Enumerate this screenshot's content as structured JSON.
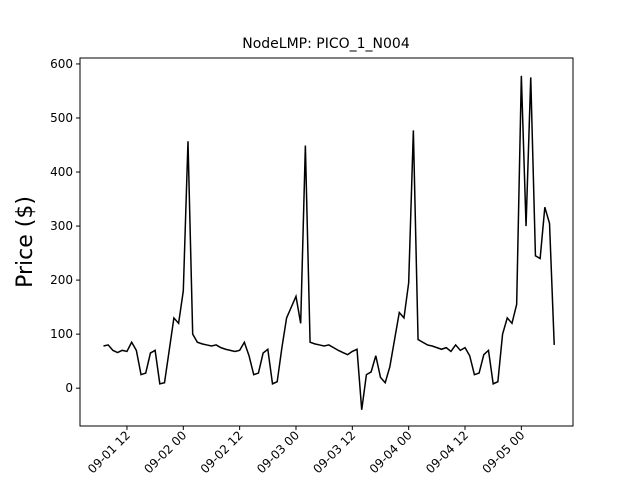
{
  "chart_data": {
    "type": "line",
    "title": "NodeLMP: PICO_1_N004",
    "y_label": "Price ($)",
    "x": [
      "09-01 07",
      "09-01 08",
      "09-01 09",
      "09-01 10",
      "09-01 11",
      "09-01 12",
      "09-01 13",
      "09-01 14",
      "09-01 15",
      "09-01 16",
      "09-01 17",
      "09-01 18",
      "09-01 19",
      "09-01 20",
      "09-01 21",
      "09-01 22",
      "09-01 23",
      "09-02 00",
      "09-02 01",
      "09-02 02",
      "09-02 03",
      "09-02 04",
      "09-02 05",
      "09-02 06",
      "09-02 07",
      "09-02 08",
      "09-02 09",
      "09-02 10",
      "09-02 11",
      "09-02 12",
      "09-02 13",
      "09-02 14",
      "09-02 15",
      "09-02 16",
      "09-02 17",
      "09-02 18",
      "09-02 19",
      "09-02 20",
      "09-02 21",
      "09-02 22",
      "09-02 23",
      "09-03 00",
      "09-03 01",
      "09-03 02",
      "09-03 03",
      "09-03 04",
      "09-03 05",
      "09-03 06",
      "09-03 07",
      "09-03 08",
      "09-03 09",
      "09-03 10",
      "09-03 11",
      "09-03 12",
      "09-03 13",
      "09-03 14",
      "09-03 15",
      "09-03 16",
      "09-03 17",
      "09-03 18",
      "09-03 19",
      "09-03 20",
      "09-03 21",
      "09-03 22",
      "09-03 23",
      "09-04 00",
      "09-04 01",
      "09-04 02",
      "09-04 03",
      "09-04 04",
      "09-04 05",
      "09-04 06",
      "09-04 07",
      "09-04 08",
      "09-04 09",
      "09-04 10",
      "09-04 11",
      "09-04 12",
      "09-04 13",
      "09-04 14",
      "09-04 15",
      "09-04 16",
      "09-04 17",
      "09-04 18",
      "09-04 19",
      "09-04 20",
      "09-04 21",
      "09-04 22",
      "09-04 23",
      "09-05 00",
      "09-05 01",
      "09-05 02",
      "09-05 03",
      "09-05 04",
      "09-05 05",
      "09-05 06",
      "09-05 07"
    ],
    "series": [
      {
        "name": "PICO_1_N004",
        "color": "#000000",
        "values": [
          78,
          80,
          70,
          66,
          70,
          68,
          85,
          70,
          25,
          28,
          65,
          70,
          8,
          10,
          70,
          130,
          120,
          180,
          457,
          100,
          85,
          82,
          80,
          78,
          80,
          75,
          72,
          70,
          68,
          70,
          85,
          60,
          25,
          28,
          65,
          72,
          8,
          12,
          75,
          130,
          150,
          170,
          120,
          449,
          85,
          82,
          80,
          78,
          80,
          75,
          70,
          66,
          62,
          68,
          72,
          -40,
          25,
          30,
          60,
          20,
          10,
          40,
          90,
          140,
          130,
          195,
          477,
          90,
          85,
          80,
          78,
          75,
          72,
          75,
          68,
          80,
          70,
          75,
          60,
          25,
          28,
          62,
          70,
          8,
          12,
          100,
          130,
          120,
          155,
          578,
          300,
          575,
          245,
          240,
          335,
          305,
          80
        ]
      }
    ],
    "xlim": [
      "09-01 02",
      "09-05 11"
    ],
    "xticks": [
      "09-01 12",
      "09-02 00",
      "09-02 12",
      "09-03 00",
      "09-03 12",
      "09-04 00",
      "09-04 12",
      "09-05 00"
    ],
    "ylim": [
      -70,
      611
    ],
    "yticks": [
      0,
      100,
      200,
      300,
      400,
      500,
      600
    ],
    "grid": false
  }
}
